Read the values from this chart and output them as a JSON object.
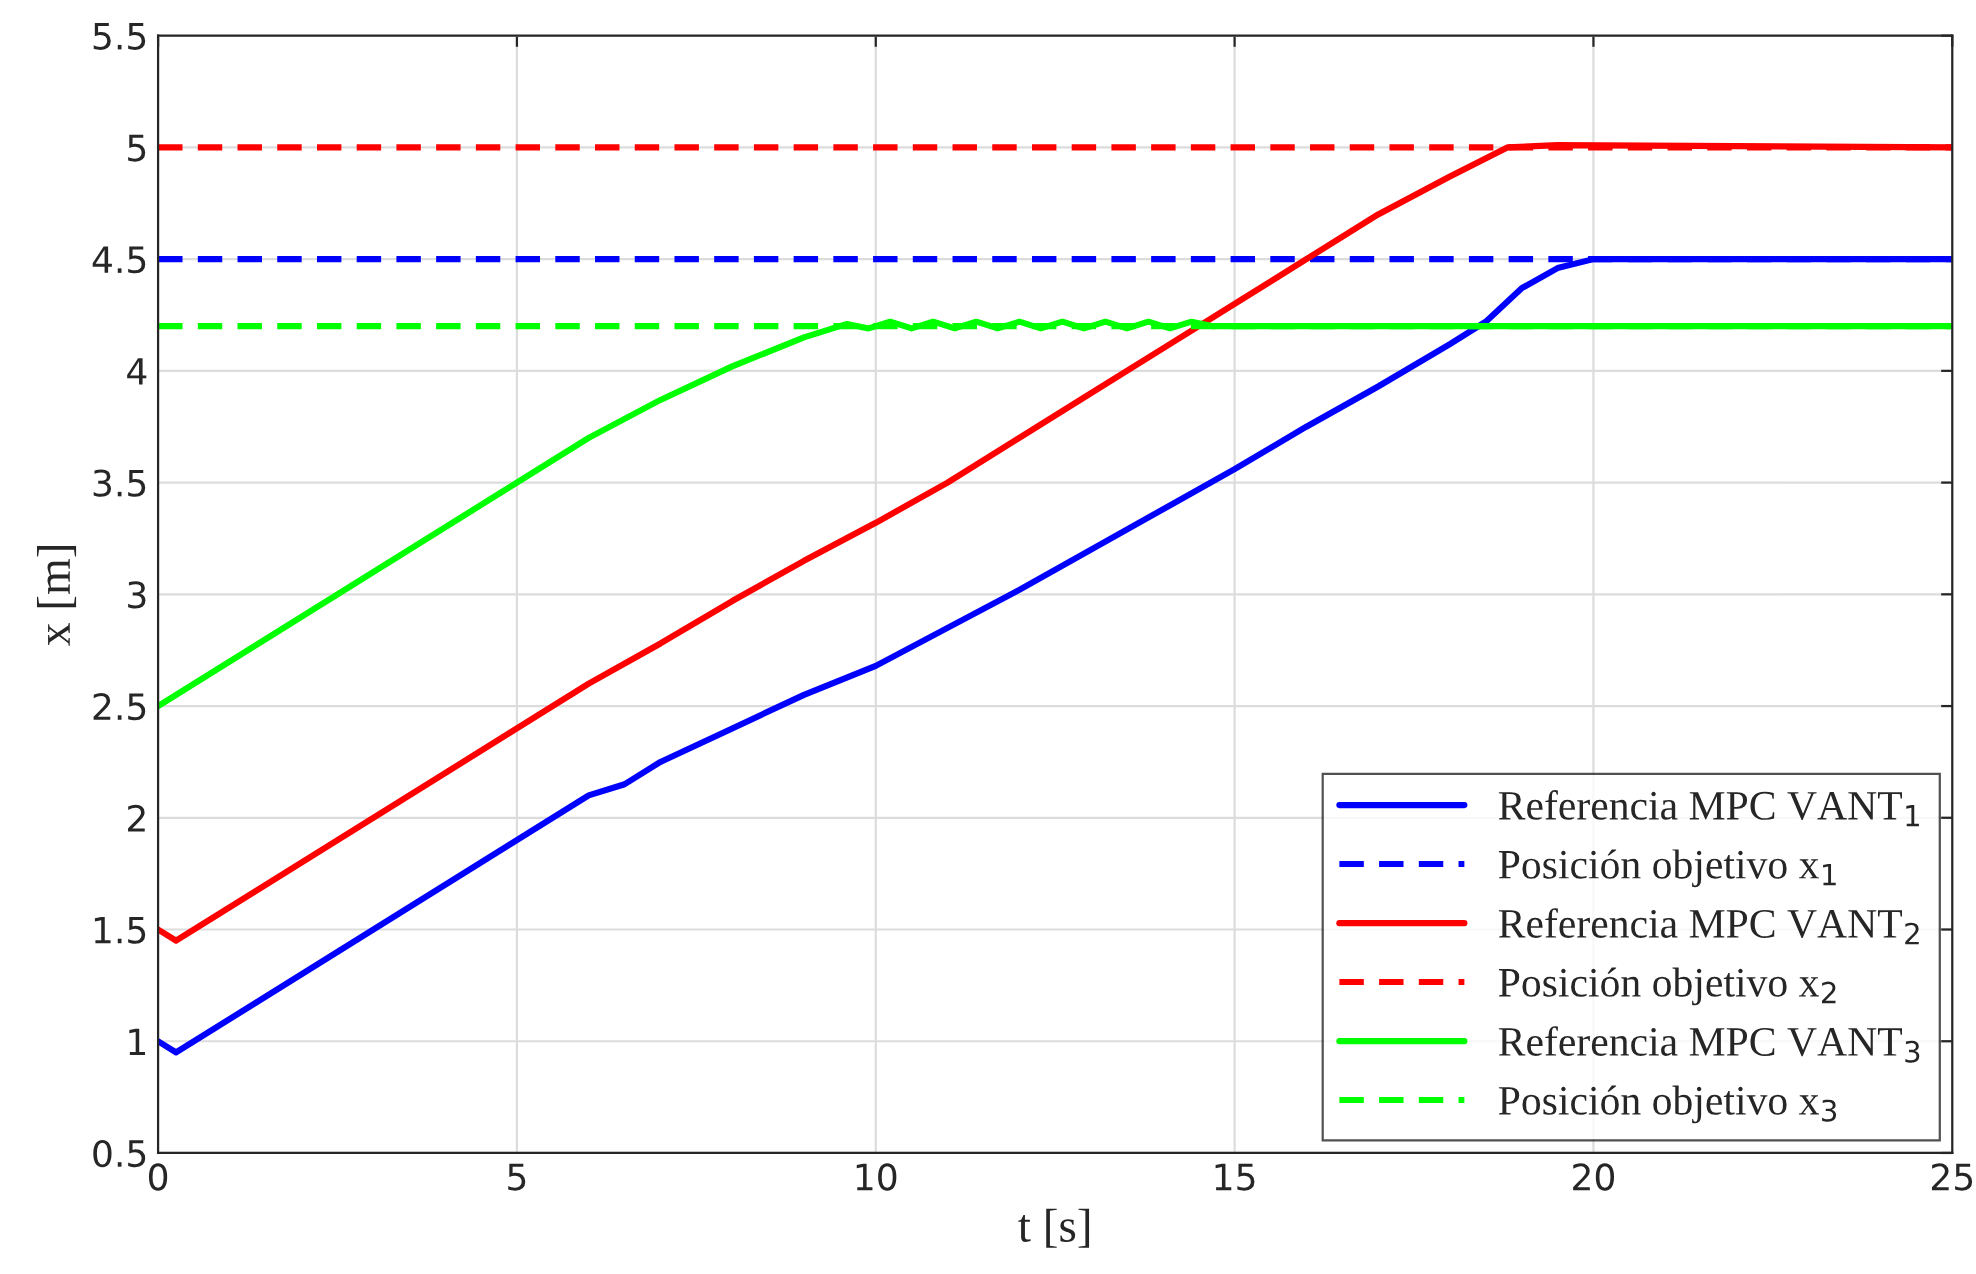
{
  "chart_data": {
    "type": "line",
    "xlabel": "t [s]",
    "ylabel": "x [m]",
    "xlim": [
      0,
      25
    ],
    "xticks": [
      0,
      5,
      10,
      15,
      20,
      25
    ],
    "ylim": [
      0.5,
      5.5
    ],
    "yticks": [
      0.5,
      1,
      1.5,
      2,
      2.5,
      3,
      3.5,
      4,
      4.5,
      5,
      5.5
    ],
    "grid": true,
    "legend": "bottom right",
    "marker": "none",
    "series": [
      {
        "name": "Referencia MPC VANT$_{1}$",
        "color": "#0000ff",
        "line_style": "solid",
        "x": [
          0,
          0.25,
          6,
          6.5,
          7,
          8,
          9,
          10,
          11,
          12,
          13,
          14,
          15,
          16,
          17,
          18,
          18.5,
          19,
          19.5,
          20,
          22,
          25
        ],
        "values": [
          1,
          0.95,
          2.1,
          2.15,
          2.25,
          2.4,
          2.55,
          2.68,
          2.85,
          3.02,
          3.2,
          3.38,
          3.56,
          3.75,
          3.93,
          4.12,
          4.22,
          4.37,
          4.46,
          4.5,
          4.5,
          4.5
        ]
      },
      {
        "name": "Posición objetivo x$_{1}$",
        "color": "#0000ff",
        "line_style": "dashed",
        "x": [
          0,
          25
        ],
        "values": [
          4.5,
          4.5
        ]
      },
      {
        "name": "Referencia MPC VANT$_{2}$",
        "color": "#ff0000",
        "line_style": "solid",
        "x": [
          0,
          0.25,
          6,
          7,
          8,
          9,
          10,
          11,
          12,
          13,
          14,
          15,
          16,
          17,
          18,
          18.8,
          19.5,
          25
        ],
        "values": [
          1.5,
          1.45,
          2.6,
          2.78,
          2.97,
          3.15,
          3.32,
          3.5,
          3.7,
          3.9,
          4.1,
          4.3,
          4.5,
          4.7,
          4.87,
          5,
          5.01,
          5
        ]
      },
      {
        "name": "Posición objetivo x$_{2}$",
        "color": "#ff0000",
        "line_style": "dashed",
        "x": [
          0,
          25
        ],
        "values": [
          5,
          5
        ]
      },
      {
        "name": "Referencia MPC VANT$_{3}$",
        "color": "#00ff00",
        "line_style": "solid",
        "x": [
          0,
          6,
          7,
          8,
          9,
          9.6,
          9.9,
          10.2,
          10.5,
          10.8,
          11.1,
          11.4,
          11.7,
          12,
          12.3,
          12.6,
          12.9,
          13.2,
          13.5,
          13.8,
          14.1,
          14.4,
          14.7,
          15,
          20,
          25
        ],
        "values": [
          2.5,
          3.7,
          3.87,
          4.02,
          4.15,
          4.21,
          4.19,
          4.22,
          4.19,
          4.22,
          4.19,
          4.22,
          4.19,
          4.22,
          4.19,
          4.22,
          4.19,
          4.22,
          4.19,
          4.22,
          4.19,
          4.22,
          4.2,
          4.2,
          4.2,
          4.2
        ]
      },
      {
        "name": "Posición objetivo x$_{3}$",
        "color": "#00ff00",
        "line_style": "dashed",
        "x": [
          0,
          25
        ],
        "values": [
          4.2,
          4.2
        ]
      }
    ]
  }
}
